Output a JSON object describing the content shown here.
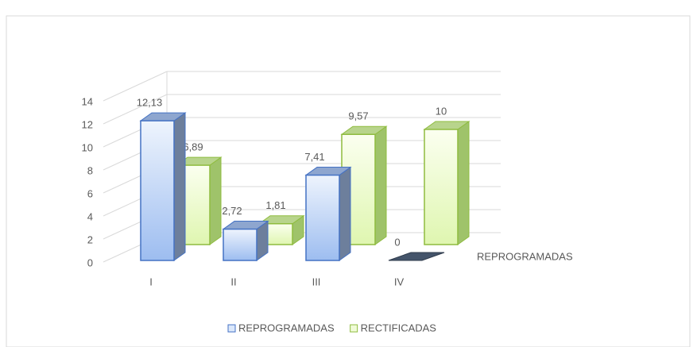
{
  "chart_data": {
    "type": "bar3d",
    "categories": [
      "I",
      "II",
      "III",
      "IV"
    ],
    "series": [
      {
        "name": "REPROGRAMADAS",
        "color": "#4472c4",
        "values": [
          12.13,
          2.72,
          7.41,
          0
        ],
        "value_labels": [
          "12,13",
          "2,72",
          "7,41",
          "0"
        ]
      },
      {
        "name": "RECTIFICADAS",
        "color": "#8fbc3f",
        "values": [
          6.89,
          1.81,
          9.57,
          10
        ],
        "value_labels": [
          "6,89",
          "1,81",
          "9,57",
          "10"
        ]
      }
    ],
    "ylim": [
      0,
      14
    ],
    "yticks": [
      0,
      2,
      4,
      6,
      8,
      10,
      12,
      14
    ],
    "grid": true,
    "legend": "bottom"
  }
}
